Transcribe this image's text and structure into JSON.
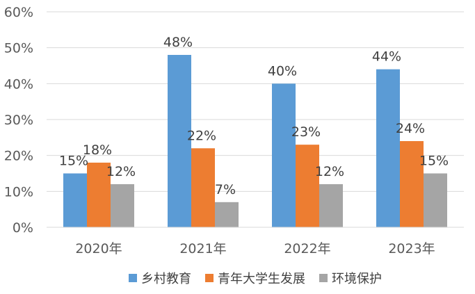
{
  "chart_data": {
    "type": "bar",
    "categories": [
      "2020年",
      "2021年",
      "2022年",
      "2023年"
    ],
    "series": [
      {
        "name": "乡村教育",
        "values": [
          15,
          48,
          40,
          44
        ],
        "color": "#5b9bd5"
      },
      {
        "name": "青年大学生发展",
        "values": [
          18,
          22,
          23,
          24
        ],
        "color": "#ed7d31"
      },
      {
        "name": "环境保护",
        "values": [
          12,
          7,
          12,
          15
        ],
        "color": "#a5a5a5"
      }
    ],
    "value_suffix": "%",
    "ylim": [
      0,
      60
    ],
    "yticks": [
      0,
      10,
      20,
      30,
      40,
      50,
      60
    ],
    "ytick_labels": [
      "0%",
      "10%",
      "20%",
      "30%",
      "40%",
      "50%",
      "60%"
    ],
    "grid": true,
    "legend_position": "bottom"
  }
}
